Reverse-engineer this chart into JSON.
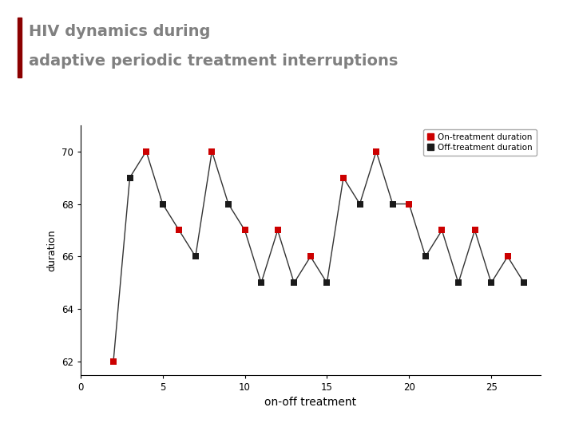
{
  "title_line1": "HIV dynamics during",
  "title_line2": "adaptive periodic treatment interruptions",
  "title_color": "#808080",
  "title_fontsize": 14,
  "accent_bar_color": "#8B0000",
  "accent_bar_width": 0.006,
  "xlabel": "on-off treatment",
  "ylabel": "duration",
  "xlim": [
    0,
    28
  ],
  "ylim": [
    61.5,
    71
  ],
  "xticks": [
    0,
    5,
    10,
    15,
    20,
    25
  ],
  "yticks": [
    62,
    64,
    66,
    68,
    70
  ],
  "on_x": [
    2,
    4,
    6,
    8,
    10,
    12,
    14,
    16,
    18,
    20,
    22,
    24,
    26
  ],
  "on_y": [
    62,
    70,
    67,
    70,
    67,
    67,
    66,
    69,
    70,
    68,
    67,
    67,
    66
  ],
  "off_x": [
    3,
    5,
    7,
    9,
    11,
    13,
    15,
    17,
    19,
    21,
    23,
    25,
    27
  ],
  "off_y": [
    69,
    68,
    66,
    68,
    65,
    65,
    65,
    68,
    68,
    66,
    65,
    65,
    65
  ],
  "on_color": "#CC0000",
  "off_color": "#1a1a1a",
  "line_color": "#333333",
  "marker_size": 6,
  "legend_on_label": "On-treatment duration",
  "legend_off_label": "Off-treatment duration",
  "bg_color": "#ffffff",
  "grid": false
}
